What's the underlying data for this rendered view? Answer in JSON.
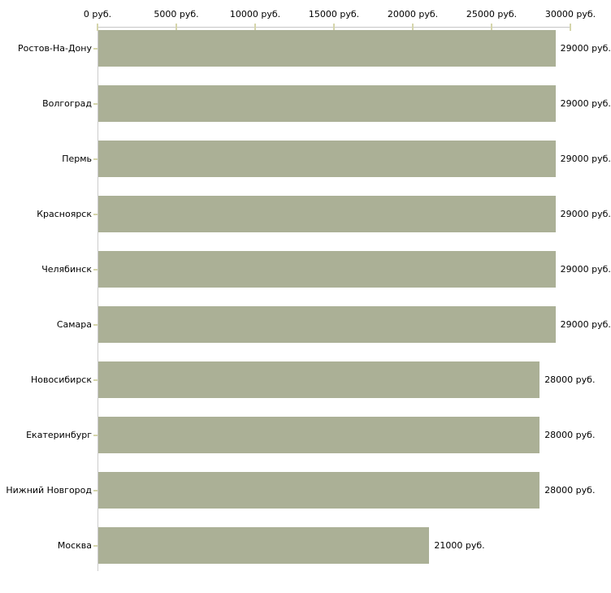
{
  "chart_data": {
    "type": "bar",
    "orientation": "horizontal",
    "title": "",
    "xlabel": "",
    "ylabel": "",
    "categories": [
      "Ростов-На-Дону",
      "Волгоград",
      "Пермь",
      "Красноярск",
      "Челябинск",
      "Самара",
      "Новосибирск",
      "Екатеринбург",
      "Нижний Новгород",
      "Москва"
    ],
    "values": [
      29000,
      29000,
      29000,
      29000,
      29000,
      29000,
      28000,
      28000,
      28000,
      21000
    ],
    "bar_labels": [
      "29000 руб.",
      "29000 руб.",
      "29000 руб.",
      "29000 руб.",
      "29000 руб.",
      "29000 руб.",
      "28000 руб.",
      "28000 руб.",
      "28000 руб.",
      "21000 руб."
    ],
    "xlim": [
      0,
      30000
    ],
    "x_ticks": [
      0,
      5000,
      10000,
      15000,
      20000,
      25000,
      30000
    ],
    "x_tick_labels": [
      "0 руб.",
      "5000 руб.",
      "10000 руб.",
      "15000 руб.",
      "20000 руб.",
      "25000 руб.",
      "30000 руб."
    ],
    "x_axis_position": "top",
    "grid": false,
    "legend": null,
    "colors": {
      "bar": "#abb096",
      "axis_line": "#c6c6c6",
      "tick_mark": "#d5d5ab",
      "text": "#000000",
      "background": "#ffffff"
    }
  }
}
